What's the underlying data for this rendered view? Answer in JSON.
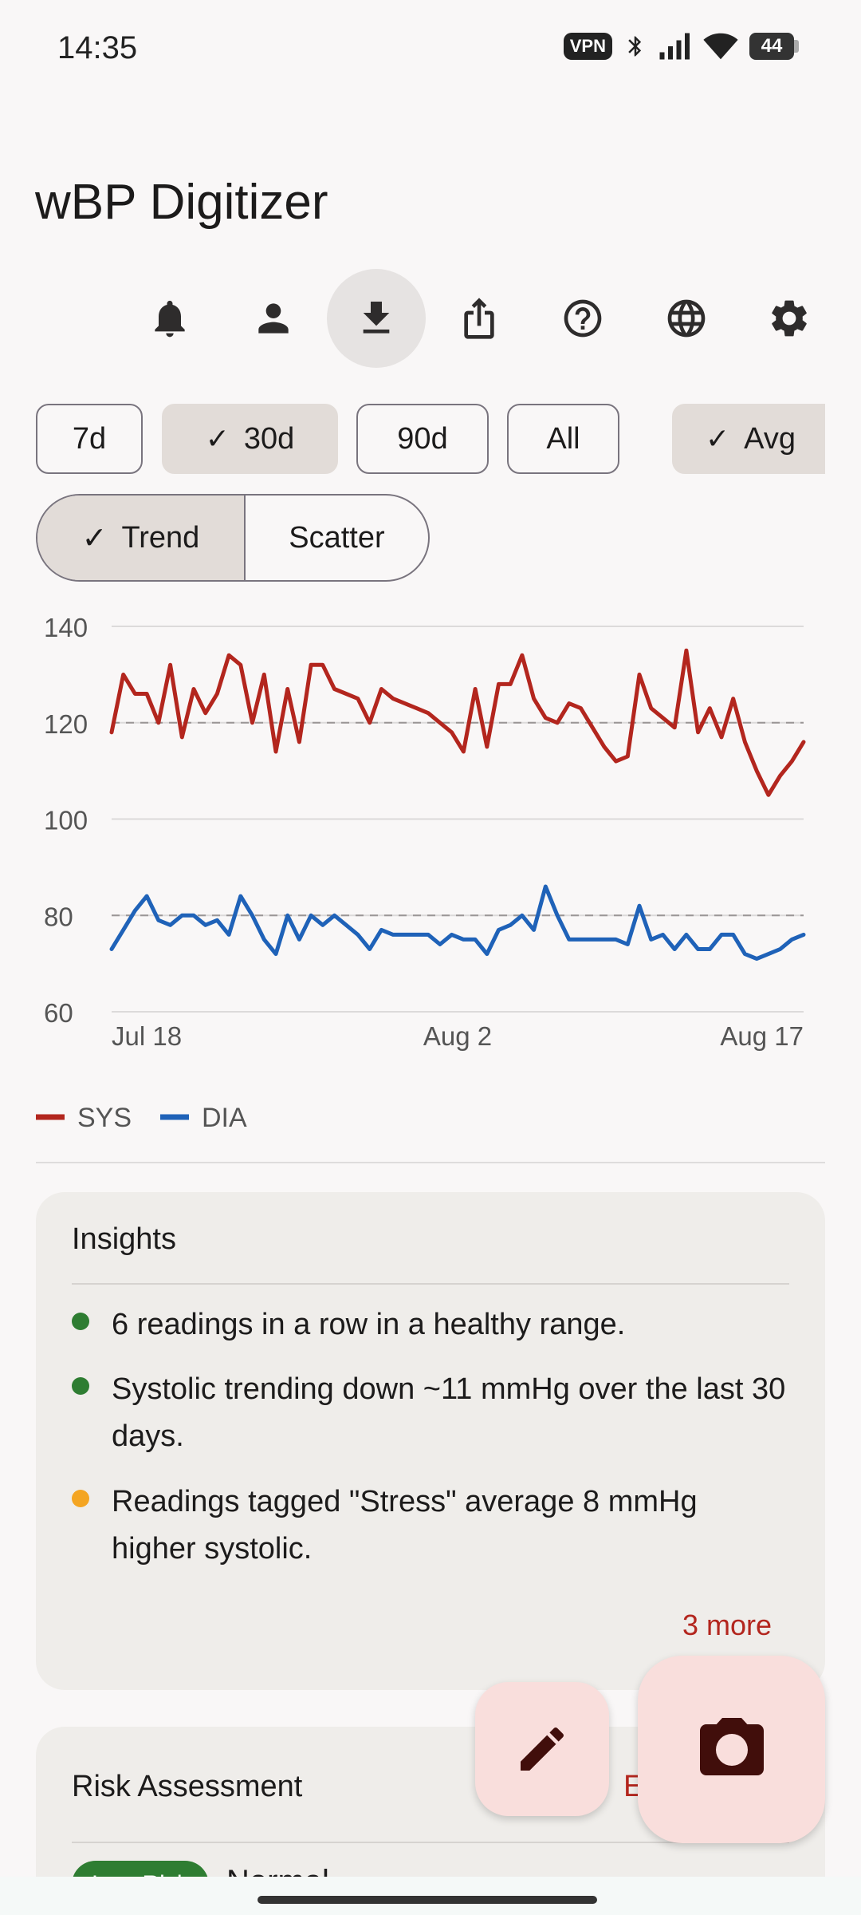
{
  "status_bar": {
    "time": "14:35",
    "vpn": "VPN",
    "battery": "44"
  },
  "app": {
    "title": "wBP Digitizer"
  },
  "toolbar": {
    "icons": [
      "bell-icon",
      "person-icon",
      "download-icon",
      "share-icon",
      "help-icon",
      "globe-icon",
      "gear-icon"
    ],
    "active": "download-icon"
  },
  "range_chips": [
    {
      "label": "7d",
      "selected": false
    },
    {
      "label": "30d",
      "selected": true
    },
    {
      "label": "90d",
      "selected": false
    },
    {
      "label": "All",
      "selected": false
    },
    {
      "label": "Avg",
      "selected": true
    }
  ],
  "view_toggle": {
    "trend": "Trend",
    "scatter": "Scatter",
    "selected": "Trend"
  },
  "chart_data": {
    "type": "line",
    "x_tick_labels": [
      "Jul 18",
      "Aug 2",
      "Aug 17"
    ],
    "y_ticks": [
      "140",
      "120",
      "100",
      "80",
      "60"
    ],
    "ylim": [
      60,
      140
    ],
    "grid": true,
    "reference_lines": [
      120,
      80
    ],
    "legend_position": "bottom-left",
    "series": [
      {
        "name": "SYS",
        "color": "#b3261e",
        "values": [
          118,
          130,
          126,
          126,
          120,
          132,
          117,
          127,
          122,
          126,
          134,
          132,
          120,
          130,
          114,
          127,
          116,
          132,
          132,
          127,
          126,
          125,
          120,
          127,
          125,
          124,
          123,
          122,
          120,
          118,
          114,
          127,
          115,
          128,
          128,
          134,
          125,
          121,
          120,
          124,
          123,
          119,
          115,
          112,
          113,
          130,
          123,
          121,
          119,
          135,
          118,
          123,
          117,
          125,
          116,
          110,
          105,
          109,
          112,
          116
        ]
      },
      {
        "name": "DIA",
        "color": "#1f62b8",
        "values": [
          73,
          77,
          81,
          84,
          79,
          78,
          80,
          80,
          78,
          79,
          76,
          84,
          80,
          75,
          72,
          80,
          75,
          80,
          78,
          80,
          78,
          76,
          73,
          77,
          76,
          76,
          76,
          76,
          74,
          76,
          75,
          75,
          72,
          77,
          78,
          80,
          77,
          86,
          80,
          75,
          75,
          75,
          75,
          75,
          74,
          82,
          75,
          76,
          73,
          76,
          73,
          73,
          76,
          76,
          72,
          71,
          72,
          73,
          75,
          76
        ]
      }
    ]
  },
  "insights": {
    "title": "Insights",
    "items": [
      {
        "text": "6 readings in a row in a healthy range.",
        "color": "#2e7d32"
      },
      {
        "text": "Systolic trending down ~11 mmHg over the last 30 days.",
        "color": "#2e7d32"
      },
      {
        "text": "Readings tagged \"Stress\" average 8 mmHg higher systolic.",
        "color": "#f4a522"
      }
    ],
    "more": "3 more"
  },
  "risk": {
    "title": "Risk Assessment",
    "partial_label": "E",
    "badge": "Low Risk",
    "status": "Normal"
  },
  "fabs": {
    "edit": "pencil-icon",
    "camera": "camera-icon"
  }
}
